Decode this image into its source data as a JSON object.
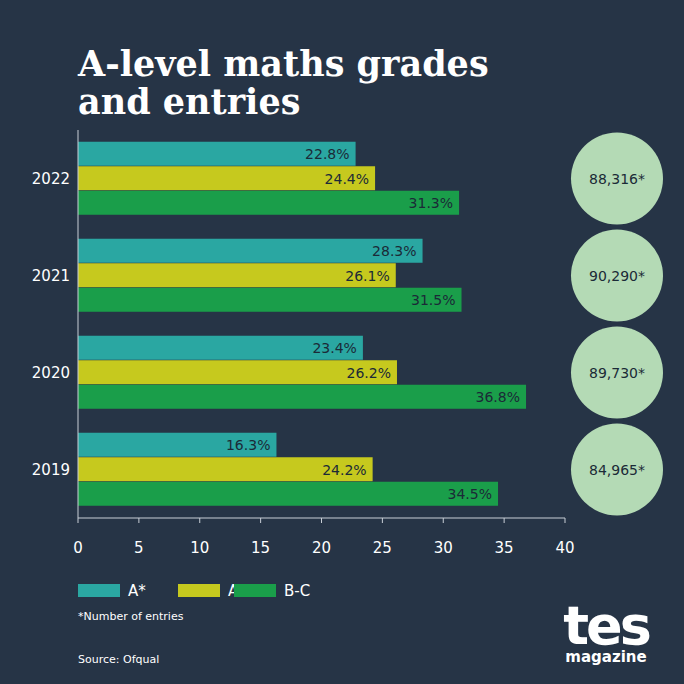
{
  "chart_data": {
    "type": "bar",
    "title": "A-level maths grades and entries",
    "orientation": "horizontal",
    "categories": [
      "2022",
      "2021",
      "2020",
      "2019"
    ],
    "series": [
      {
        "name": "A*",
        "color": "#2aa7a2",
        "values": [
          22.8,
          28.3,
          23.4,
          16.3
        ],
        "value_labels": [
          "22.8%",
          "28.3%",
          "23.4%",
          "16.3%"
        ]
      },
      {
        "name": "A",
        "color": "#c6c91e",
        "values": [
          24.4,
          26.1,
          26.2,
          24.2
        ],
        "value_labels": [
          "24.4%",
          "26.1%",
          "26.2%",
          "24.2%"
        ]
      },
      {
        "name": "B-C",
        "color": "#1a9e4a",
        "values": [
          31.3,
          31.5,
          36.8,
          34.5
        ],
        "value_labels": [
          "31.3%",
          "31.5%",
          "36.8%",
          "34.5%"
        ]
      }
    ],
    "xlim": [
      0,
      40
    ],
    "xticks": [
      0,
      5,
      10,
      15,
      20,
      25,
      30,
      35,
      40
    ],
    "grid": false,
    "data_labels": true,
    "legend": "bottom-left",
    "entries": [
      {
        "value": 88316,
        "label": "88,316*"
      },
      {
        "value": 90290,
        "label": "90,290*"
      },
      {
        "value": 89730,
        "label": "89,730*"
      },
      {
        "value": 84965,
        "label": "84,965*"
      }
    ],
    "footnote": "*Number of entries",
    "source": "Source: Ofqual",
    "logo": {
      "name": "tes",
      "sub": "magazine"
    }
  }
}
